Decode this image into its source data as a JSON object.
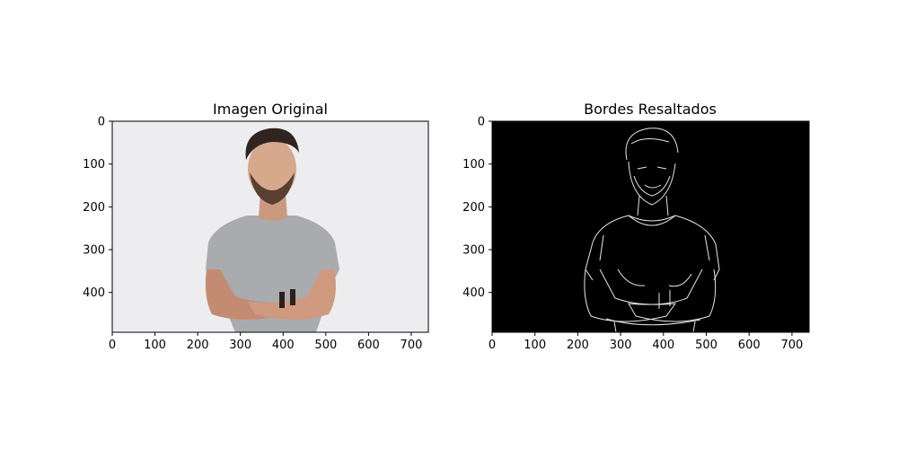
{
  "chart_data": [
    {
      "type": "image",
      "title": "Imagen Original",
      "xlim": [
        0,
        740
      ],
      "ylim": [
        0,
        493
      ],
      "x_ticks": [
        0,
        100,
        200,
        300,
        400,
        500,
        600,
        700
      ],
      "y_ticks": [
        0,
        100,
        200,
        300,
        400
      ],
      "y_inverted": true,
      "background_color": "#ededef",
      "content": "photo"
    },
    {
      "type": "image",
      "title": "Bordes Resaltados",
      "xlim": [
        0,
        740
      ],
      "ylim": [
        0,
        493
      ],
      "x_ticks": [
        0,
        100,
        200,
        300,
        400,
        500,
        600,
        700
      ],
      "y_ticks": [
        0,
        100,
        200,
        300,
        400
      ],
      "y_inverted": true,
      "background_color": "#000000",
      "content": "edges"
    }
  ]
}
